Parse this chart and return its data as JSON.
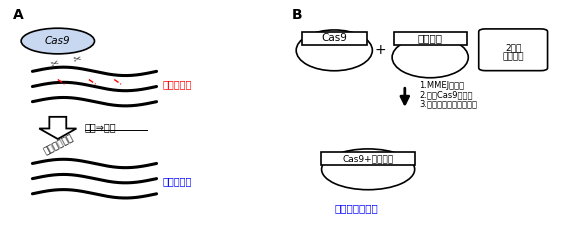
{
  "bg_color": "#ffffff",
  "label_A": "A",
  "label_B": "B",
  "panel_A": {
    "cas9_label": "Cas9",
    "cas9_fc": "#c8d8f0",
    "cas9_ec": "#000000",
    "anomal_label": "異常ゲノム",
    "anomal_color": "#ff0000",
    "arrow_label": "切除⇒修復",
    "insert_label": "正常配列挿入",
    "normal_label": "正常ゲノム",
    "normal_color": "#0000ff"
  },
  "panel_B": {
    "cas9_box_label": "Cas9",
    "insert_box_label": "挿入配列",
    "vector2_line1": "2つの",
    "vector2_line2": "ベクター",
    "plus_label": "+",
    "step1": "1.MMEJの採用",
    "step2": "2.小型Cas9の採用",
    "step3": "3.プロモーターの極小化",
    "combined_box_label": "Cas9+挿入配列",
    "single_vector_label": "単一ベクター化",
    "single_vector_color": "#0000ff"
  }
}
